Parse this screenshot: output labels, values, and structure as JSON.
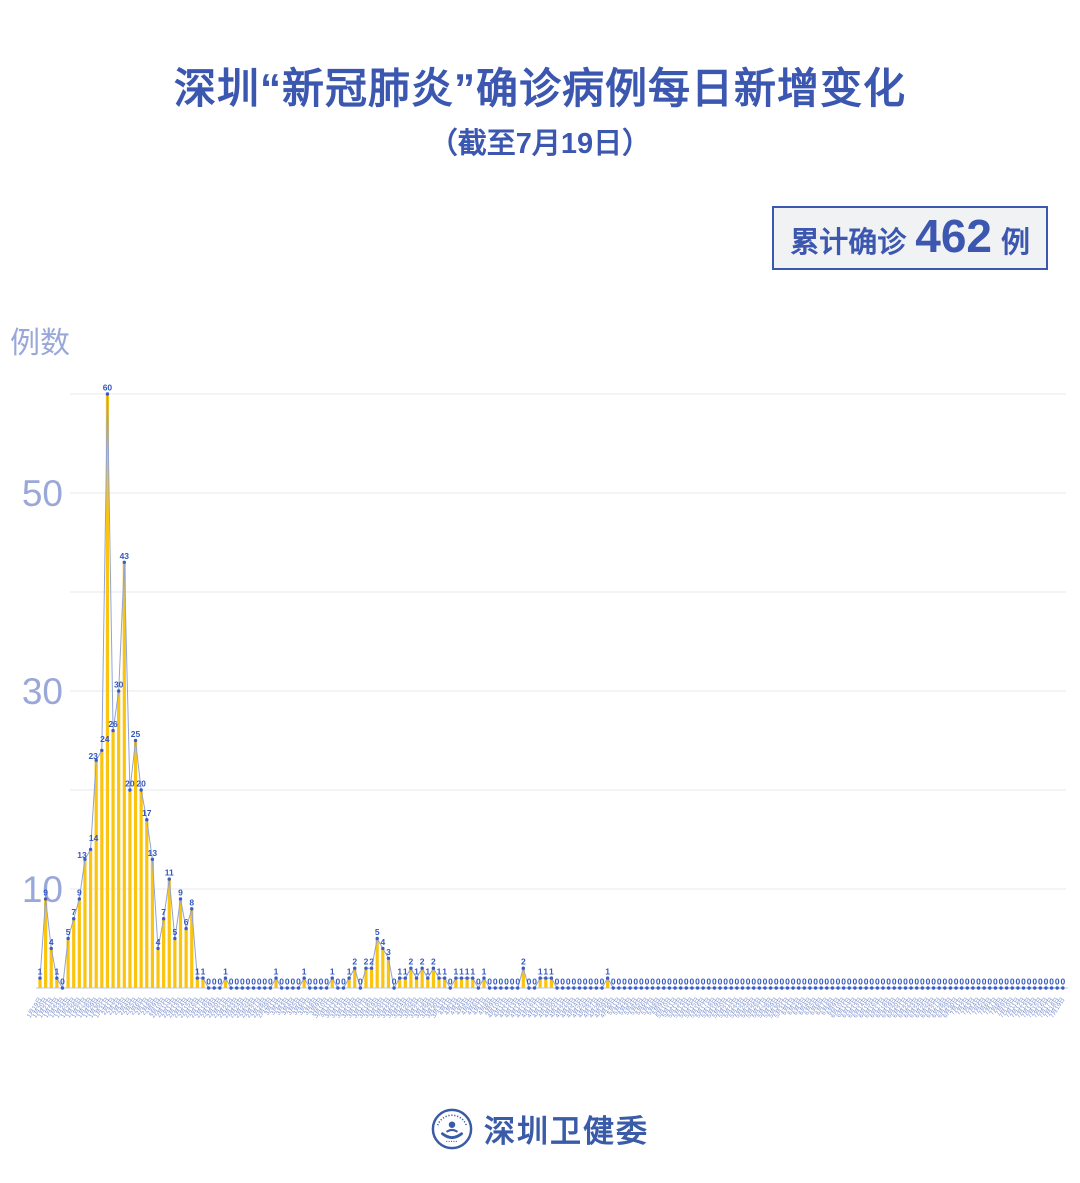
{
  "title": "深圳“新冠肺炎”确诊病例每日新增变化",
  "subtitle": "（截至7月19日）",
  "badge": {
    "prefix": "累计确诊",
    "value": "462",
    "suffix": "例"
  },
  "y_axis_title": "例数",
  "footer": {
    "org": "深圳卫健委",
    "logo": "shenzhen-health-commission-emblem"
  },
  "colors": {
    "title_blue": "#3B57B0",
    "bar_yellow": "#FBC40F",
    "line_blue": "#91A3D6",
    "marker_blue": "#3A5CC4",
    "value_label_blue": "#3457BD",
    "axis_tick_blue": "#99A7D9",
    "date_label_blue": "#7B90CF",
    "grid_grey": "#E8E8E8",
    "baseline_blue": "#C9D3EA",
    "badge_bg": "#F1F2F3"
  },
  "chart_data": {
    "type": "bar",
    "overlay": "line-with-point-markers-and-value-labels",
    "title": "深圳“新冠肺炎”确诊病例每日新增变化",
    "subtitle": "（截至7月19日）",
    "xlabel": "",
    "ylabel": "例数",
    "ylim": [
      0,
      62
    ],
    "yticks_labeled": [
      10,
      30,
      50
    ],
    "gridlines": [
      10,
      20,
      30,
      40,
      50,
      60
    ],
    "legend": null,
    "total_label": "累计确诊 462 例",
    "dates": [
      "1月19日",
      "1月20日",
      "1月21日",
      "1月22日",
      "1月23日",
      "1月24日",
      "1月25日",
      "1月26日",
      "1月27日",
      "1月28日",
      "1月29日",
      "1月30日",
      "1月31日",
      "2月1日",
      "2月2日",
      "2月3日",
      "2月4日",
      "2月5日",
      "2月6日",
      "2月7日",
      "2月8日",
      "2月9日",
      "2月10日",
      "2月11日",
      "2月12日",
      "2月13日",
      "2月14日",
      "2月15日",
      "2月16日",
      "2月17日",
      "2月18日",
      "2月19日",
      "2月20日",
      "2月21日",
      "2月22日",
      "2月23日",
      "2月24日",
      "2月25日",
      "2月26日",
      "2月27日",
      "2月28日",
      "2月29日",
      "3月1日",
      "3月2日",
      "3月3日",
      "3月4日",
      "3月5日",
      "3月6日",
      "3月7日",
      "3月8日",
      "3月9日",
      "3月10日",
      "3月11日",
      "3月12日",
      "3月13日",
      "3月14日",
      "3月15日",
      "3月16日",
      "3月17日",
      "3月18日",
      "3月19日",
      "3月20日",
      "3月21日",
      "3月22日",
      "3月23日",
      "3月24日",
      "3月25日",
      "3月26日",
      "3月27日",
      "3月28日",
      "3月29日",
      "3月30日",
      "3月31日",
      "4月1日",
      "4月2日",
      "4月3日",
      "4月4日",
      "4月5日",
      "4月6日",
      "4月7日",
      "4月8日",
      "4月9日",
      "4月10日",
      "4月11日",
      "4月12日",
      "4月13日",
      "4月14日",
      "4月15日",
      "4月16日",
      "4月17日",
      "4月18日",
      "4月19日",
      "4月20日",
      "4月21日",
      "4月22日",
      "4月23日",
      "4月24日",
      "4月25日",
      "4月26日",
      "4月27日",
      "4月28日",
      "4月29日",
      "4月30日",
      "5月1日",
      "5月2日",
      "5月3日",
      "5月4日",
      "5月5日",
      "5月6日",
      "5月7日",
      "5月8日",
      "5月9日",
      "5月10日",
      "5月11日",
      "5月12日",
      "5月13日",
      "5月14日",
      "5月15日",
      "5月16日",
      "5月17日",
      "5月18日",
      "5月19日",
      "5月20日",
      "5月21日",
      "5月22日",
      "5月23日",
      "5月24日",
      "5月25日",
      "5月26日",
      "5月27日",
      "5月28日",
      "5月29日",
      "5月30日",
      "5月31日",
      "6月1日",
      "6月2日",
      "6月3日",
      "6月4日",
      "6月5日",
      "6月6日",
      "6月7日",
      "6月8日",
      "6月9日",
      "6月10日",
      "6月11日",
      "6月12日",
      "6月13日",
      "6月14日",
      "6月15日",
      "6月16日",
      "6月17日",
      "6月18日",
      "6月19日",
      "6月20日",
      "6月21日",
      "6月22日",
      "6月23日",
      "6月24日",
      "6月25日",
      "6月26日",
      "6月27日",
      "6月28日",
      "6月29日",
      "6月30日",
      "7月1日",
      "7月2日",
      "7月3日",
      "7月4日",
      "7月5日",
      "7月6日",
      "7月7日",
      "7月8日",
      "7月9日",
      "7月10日",
      "7月11日",
      "7月12日",
      "7月13日",
      "7月14日",
      "7月15日",
      "7月16日",
      "7月17日",
      "7月18日",
      "7月19日"
    ],
    "values": [
      1,
      9,
      4,
      1,
      0,
      5,
      7,
      9,
      13,
      14,
      23,
      24,
      60,
      26,
      30,
      43,
      20,
      25,
      20,
      17,
      13,
      4,
      7,
      11,
      5,
      9,
      6,
      8,
      1,
      1,
      0,
      0,
      0,
      1,
      0,
      0,
      0,
      0,
      0,
      0,
      0,
      0,
      1,
      0,
      0,
      0,
      0,
      1,
      0,
      0,
      0,
      0,
      1,
      0,
      0,
      1,
      2,
      0,
      2,
      2,
      5,
      4,
      3,
      0,
      1,
      1,
      2,
      1,
      2,
      1,
      2,
      1,
      1,
      0,
      1,
      1,
      1,
      1,
      0,
      1,
      0,
      0,
      0,
      0,
      0,
      0,
      2,
      0,
      0,
      1,
      1,
      1,
      0,
      0,
      0,
      0,
      0,
      0,
      0,
      0,
      0,
      1,
      0,
      0,
      0,
      0,
      0,
      0,
      0,
      0,
      0,
      0,
      0,
      0,
      0,
      0,
      0,
      0,
      0,
      0,
      0,
      0,
      0,
      0,
      0,
      0,
      0,
      0,
      0,
      0,
      0,
      0,
      0,
      0,
      0,
      0,
      0,
      0,
      0,
      0,
      0,
      0,
      0,
      0,
      0,
      0,
      0,
      0,
      0,
      0,
      0,
      0,
      0,
      0,
      0,
      0,
      0,
      0,
      0,
      0,
      0,
      0,
      0,
      0,
      0,
      0,
      0,
      0,
      0,
      0,
      0,
      0,
      0,
      0,
      0,
      0,
      0,
      0,
      0,
      0,
      0,
      0,
      0
    ]
  }
}
